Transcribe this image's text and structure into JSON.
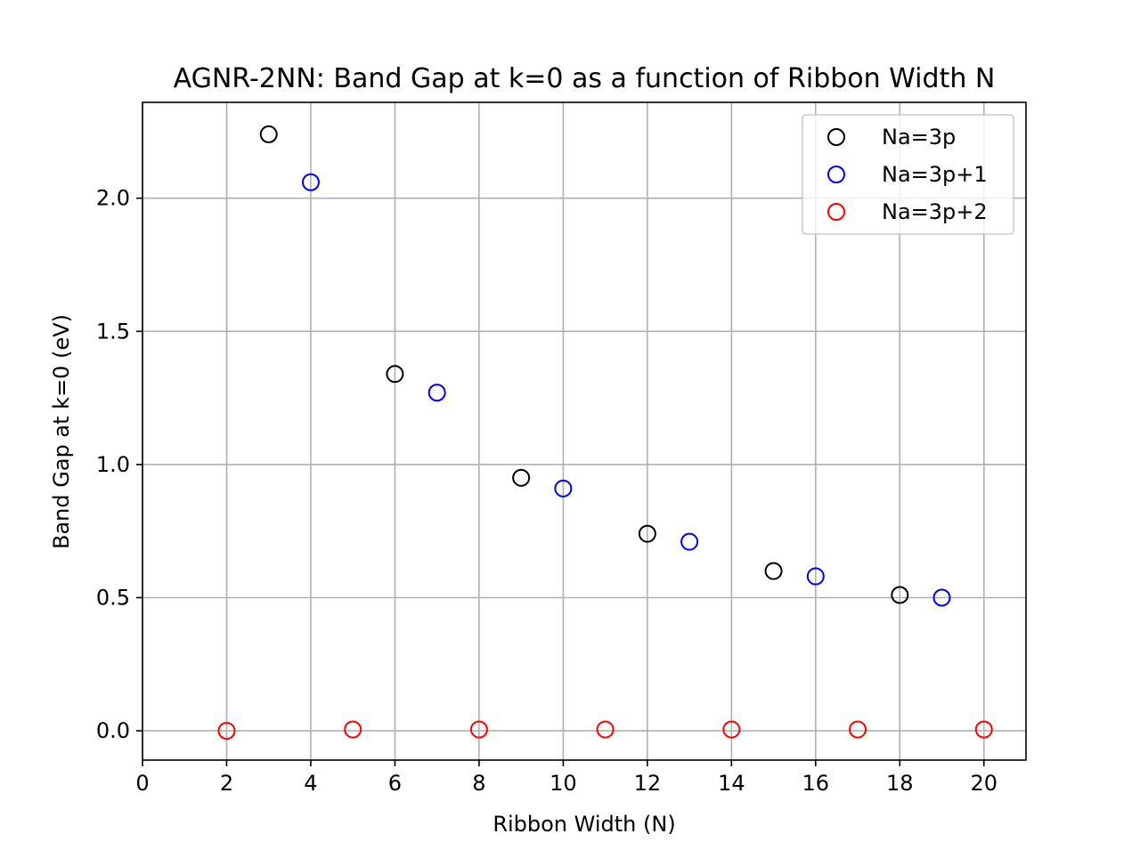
{
  "chart_data": {
    "type": "scatter",
    "title": "AGNR-2NN: Band Gap at k=0 as a function of Ribbon Width N",
    "xlabel": "Ribbon Width (N)",
    "ylabel": "Band Gap at k=0 (eV)",
    "xlim": [
      0,
      21
    ],
    "ylim": [
      -0.11,
      2.36
    ],
    "xticks": [
      0,
      2,
      4,
      6,
      8,
      10,
      12,
      14,
      16,
      18,
      20
    ],
    "xtick_labels": [
      "0",
      "2",
      "4",
      "6",
      "8",
      "10",
      "12",
      "14",
      "16",
      "18",
      "20"
    ],
    "yticks": [
      0.0,
      0.5,
      1.0,
      1.5,
      2.0
    ],
    "ytick_labels": [
      "0.0",
      "0.5",
      "1.0",
      "1.5",
      "2.0"
    ],
    "grid": true,
    "legend_position": "top-right",
    "marker": "hollow-circle",
    "series": [
      {
        "name": "Na=3p",
        "color": "#000000",
        "x": [
          3,
          6,
          9,
          12,
          15,
          18
        ],
        "y": [
          2.24,
          1.34,
          0.95,
          0.74,
          0.6,
          0.51
        ]
      },
      {
        "name": "Na=3p+1",
        "color": "#0000ff",
        "x": [
          4,
          7,
          10,
          13,
          16,
          19
        ],
        "y": [
          2.06,
          1.27,
          0.91,
          0.71,
          0.58,
          0.5
        ]
      },
      {
        "name": "Na=3p+2",
        "color": "#ff0000",
        "x": [
          2,
          5,
          8,
          11,
          14,
          17,
          20
        ],
        "y": [
          0.0,
          0.005,
          0.005,
          0.005,
          0.005,
          0.005,
          0.005
        ]
      }
    ]
  }
}
